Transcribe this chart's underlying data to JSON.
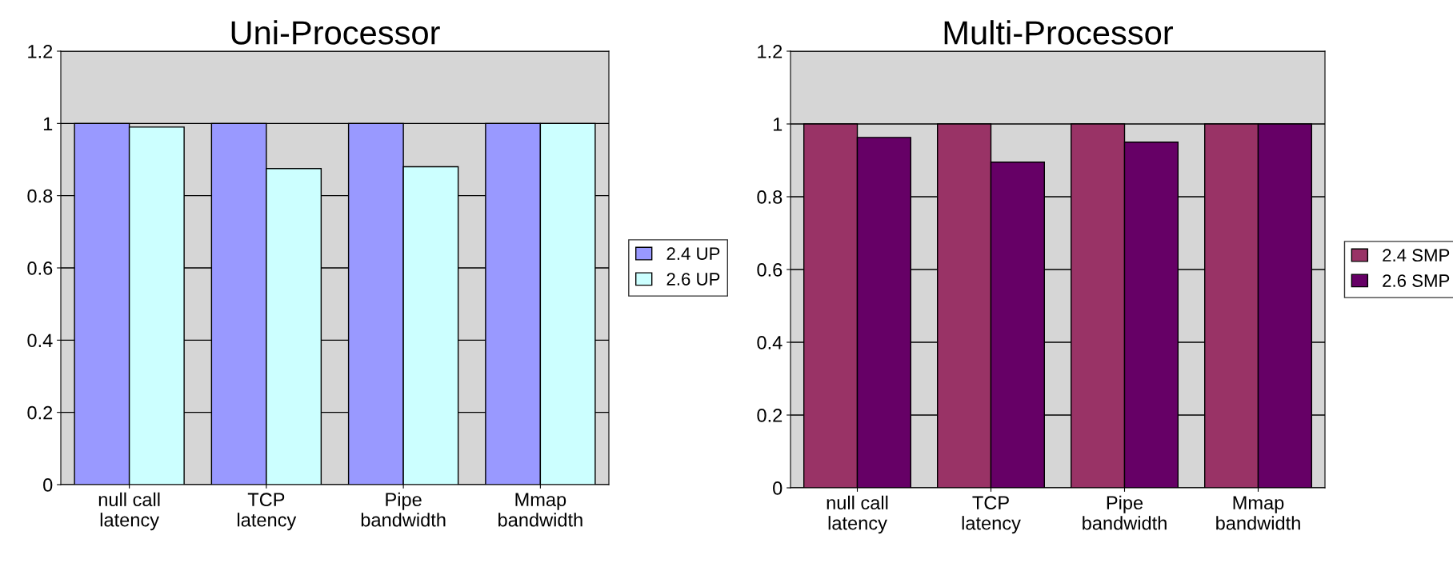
{
  "chart_data": [
    {
      "type": "bar",
      "title": "Uni-Processor",
      "categories": [
        "null call\nlatency",
        "TCP\nlatency",
        "Pipe\nbandwidth",
        "Mmap\nbandwidth"
      ],
      "series": [
        {
          "name": "2.4 UP",
          "color": "#9999ff",
          "values": [
            1.0,
            1.0,
            1.0,
            1.0
          ]
        },
        {
          "name": "2.6 UP",
          "color": "#ccffff",
          "values": [
            0.99,
            0.875,
            0.88,
            1.0
          ]
        }
      ],
      "ylim": [
        0,
        1.2
      ],
      "yticks": [
        0,
        0.2,
        0.4,
        0.6,
        0.8,
        1,
        1.2
      ],
      "grid": "y",
      "legend": "right"
    },
    {
      "type": "bar",
      "title": "Multi-Processor",
      "categories": [
        "null call\nlatency",
        "TCP\nlatency",
        "Pipe\nbandwidth",
        "Mmap\nbandwidth"
      ],
      "series": [
        {
          "name": "2.4 SMP",
          "color": "#993366",
          "values": [
            1.0,
            1.0,
            1.0,
            1.0
          ]
        },
        {
          "name": "2.6 SMP",
          "color": "#660066",
          "values": [
            0.963,
            0.895,
            0.95,
            1.0
          ]
        }
      ],
      "ylim": [
        0,
        1.2
      ],
      "yticks": [
        0,
        0.2,
        0.4,
        0.6,
        0.8,
        1,
        1.2
      ],
      "grid": "y",
      "legend": "right"
    }
  ]
}
